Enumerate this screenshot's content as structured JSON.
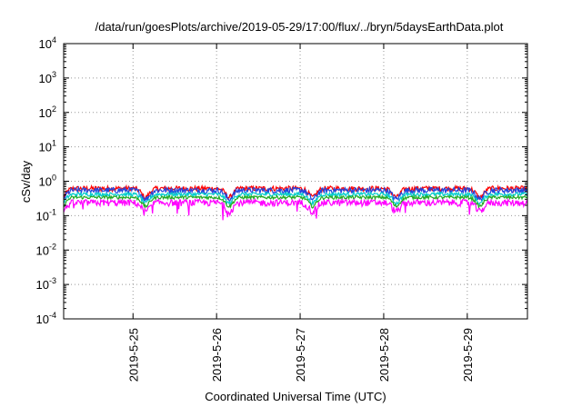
{
  "chart_data": {
    "type": "line",
    "title": "/data/run/goesPlots/archive/2019-05-29/17:00/flux/../bryn/5daysEarthData.plot",
    "xlabel": "Coordinated Universal Time (UTC)",
    "ylabel": "cSv/day",
    "yscale": "log",
    "ylim": [
      0.0001,
      10000
    ],
    "xlim_days": [
      24.17,
      29.72
    ],
    "y_ticks": [
      {
        "base": "10",
        "exp": "-4",
        "value": 0.0001
      },
      {
        "base": "10",
        "exp": "-3",
        "value": 0.001
      },
      {
        "base": "10",
        "exp": "-2",
        "value": 0.01
      },
      {
        "base": "10",
        "exp": "-1",
        "value": 0.1
      },
      {
        "base": "10",
        "exp": "0",
        "value": 1
      },
      {
        "base": "10",
        "exp": "1",
        "value": 10
      },
      {
        "base": "10",
        "exp": "2",
        "value": 100
      },
      {
        "base": "10",
        "exp": "3",
        "value": 1000
      },
      {
        "base": "10",
        "exp": "4",
        "value": 10000
      }
    ],
    "x_ticks": [
      {
        "label": "2019-5-25",
        "value": 25
      },
      {
        "label": "2019-5-26",
        "value": 26
      },
      {
        "label": "2019-5-27",
        "value": 27
      },
      {
        "label": "2019-5-28",
        "value": 28
      },
      {
        "label": "2019-5-29",
        "value": 29
      }
    ],
    "grid": true,
    "series": [
      {
        "color": "#ff0000",
        "level": 0.62,
        "noise": 0.35
      },
      {
        "color": "#2244dd",
        "level": 0.55,
        "noise": 0.4
      },
      {
        "color": "#00cccc",
        "level": 0.42,
        "noise": 0.25
      },
      {
        "color": "#22aa22",
        "level": 0.34,
        "noise": 0.22
      },
      {
        "color": "#ff00ff",
        "level": 0.24,
        "noise": 0.45
      }
    ]
  }
}
